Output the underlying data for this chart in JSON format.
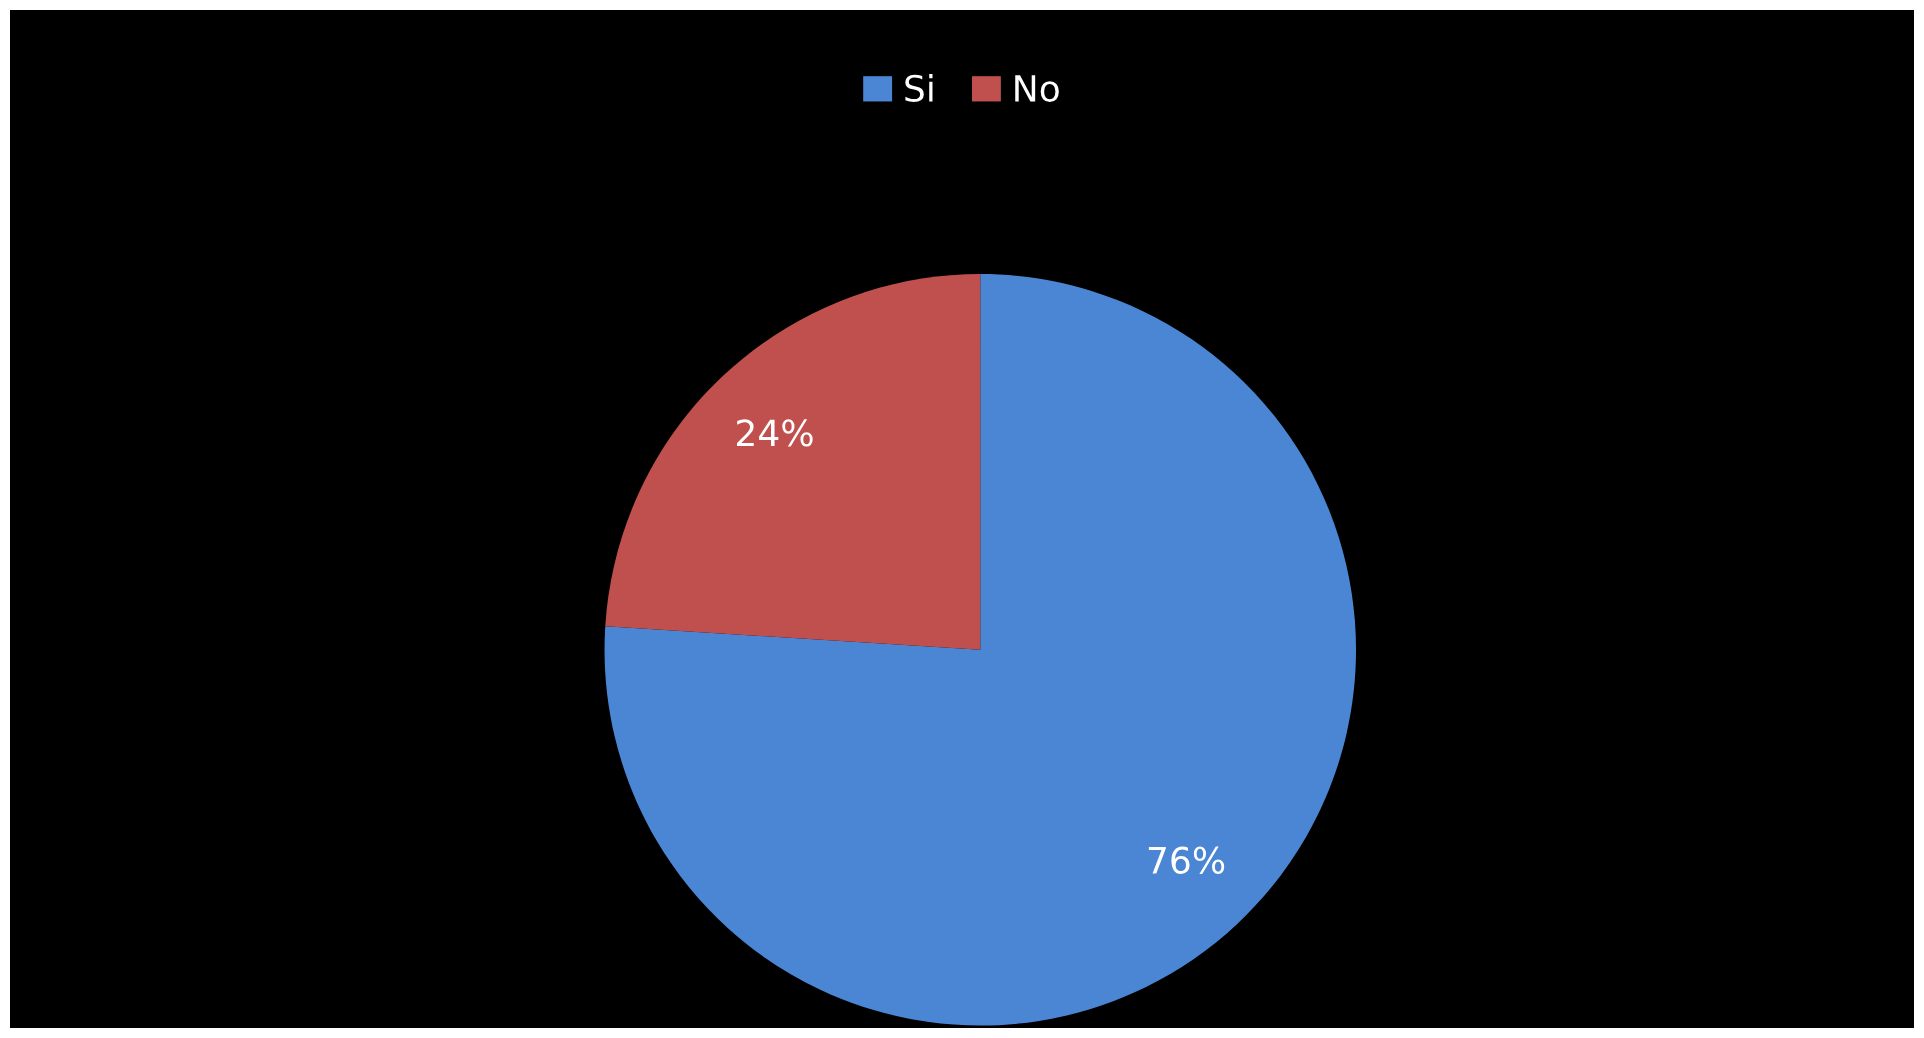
{
  "chart_data": {
    "type": "pie",
    "categories": [
      "Si",
      "No"
    ],
    "values": [
      76,
      24
    ],
    "colors": [
      "#4a86d4",
      "#c0504d"
    ],
    "value_labels": [
      "76%",
      "24%"
    ],
    "legend": "top"
  }
}
